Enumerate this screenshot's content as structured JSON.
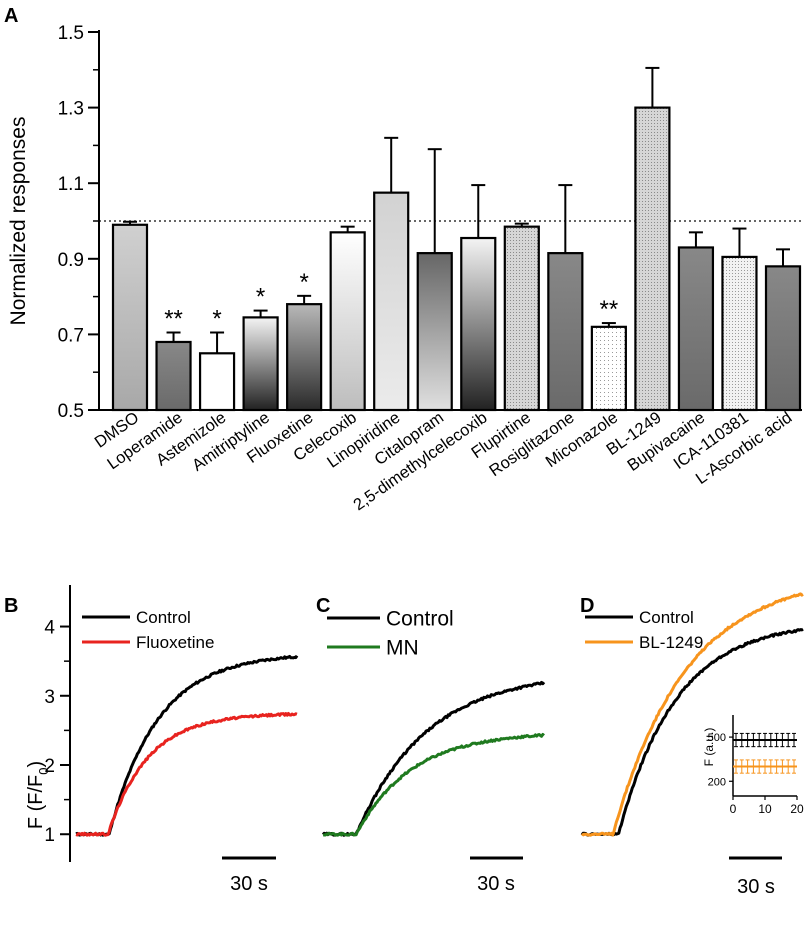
{
  "chart_data": [
    {
      "panel": "A",
      "type": "bar",
      "ylabel": "Normalized responses",
      "ylim": [
        0.5,
        1.5
      ],
      "yticks": [
        "0.5",
        "0.7",
        "0.9",
        "1.1",
        "1.3",
        "1.5"
      ],
      "reference_line": 1.0,
      "categories": [
        "DMSO",
        "Loperamide",
        "Astemizole",
        "Amitriptyline",
        "Fluoxetine",
        "Celecoxib",
        "Linopiridine",
        "Citalopram",
        "2,5-dimethylcelecoxib",
        "Flupirtine",
        "Rosiglitazone",
        "Miconazole",
        "BL-1249",
        "Bupivacaine",
        "ICA-110381",
        "L-Ascorbic acid"
      ],
      "values": [
        0.99,
        0.68,
        0.65,
        0.745,
        0.78,
        0.97,
        1.075,
        0.915,
        0.955,
        0.985,
        0.915,
        0.72,
        1.3,
        0.93,
        0.905,
        0.88
      ],
      "errors": [
        0.008,
        0.025,
        0.055,
        0.018,
        0.022,
        0.015,
        0.145,
        0.275,
        0.14,
        0.008,
        0.18,
        0.01,
        0.105,
        0.04,
        0.075,
        0.045
      ],
      "significance": [
        "",
        "**",
        "*",
        "*",
        "*",
        "",
        "",
        "",
        "",
        "",
        "",
        "**",
        "",
        "",
        "",
        ""
      ]
    },
    {
      "panel": "B",
      "type": "line",
      "ylabel": "F (F/F",
      "ylabel_sub": "0",
      "ylabel_close": ")",
      "yticks": [
        "1",
        "2",
        "3",
        "4"
      ],
      "ylim": [
        0.7,
        4.6
      ],
      "scalebar": "30 s",
      "series": [
        {
          "name": "Control",
          "color": "#000000",
          "onset": 0.15,
          "plateau": 3.62,
          "tau": 0.22
        },
        {
          "name": "Fluoxetine",
          "color": "#e8231f",
          "onset": 0.145,
          "plateau": 2.75,
          "tau": 0.18
        }
      ]
    },
    {
      "panel": "C",
      "type": "line",
      "scalebar": "30 s",
      "ylim": [
        0.7,
        4.6
      ],
      "series": [
        {
          "name": "Control",
          "color": "#000000",
          "onset": 0.15,
          "plateau": 3.35,
          "tau": 0.32
        },
        {
          "name": "MN",
          "color": "#1f7a1f",
          "onset": 0.15,
          "plateau": 2.48,
          "tau": 0.25
        }
      ]
    },
    {
      "panel": "D",
      "type": "line",
      "scalebar": "30 s",
      "ylim": [
        0.7,
        4.6
      ],
      "series": [
        {
          "name": "Control",
          "color": "#000000",
          "onset": 0.165,
          "plateau": 4.08,
          "tau": 0.26
        },
        {
          "name": "BL-1249",
          "color": "#f7941d",
          "onset": 0.14,
          "plateau": 4.75,
          "tau": 0.33
        }
      ],
      "inset": {
        "ylabel": "F (a.u.)",
        "yticks": [
          "200",
          "500"
        ],
        "xticks": [
          "0",
          "10",
          "20"
        ],
        "xlim": [
          0,
          20
        ],
        "ylim": [
          100,
          650
        ],
        "series": [
          {
            "name": "Control",
            "color": "#000000",
            "value": 480,
            "error": 45
          },
          {
            "name": "BL-1249",
            "color": "#f7941d",
            "value": 300,
            "error": 45
          }
        ]
      }
    }
  ]
}
